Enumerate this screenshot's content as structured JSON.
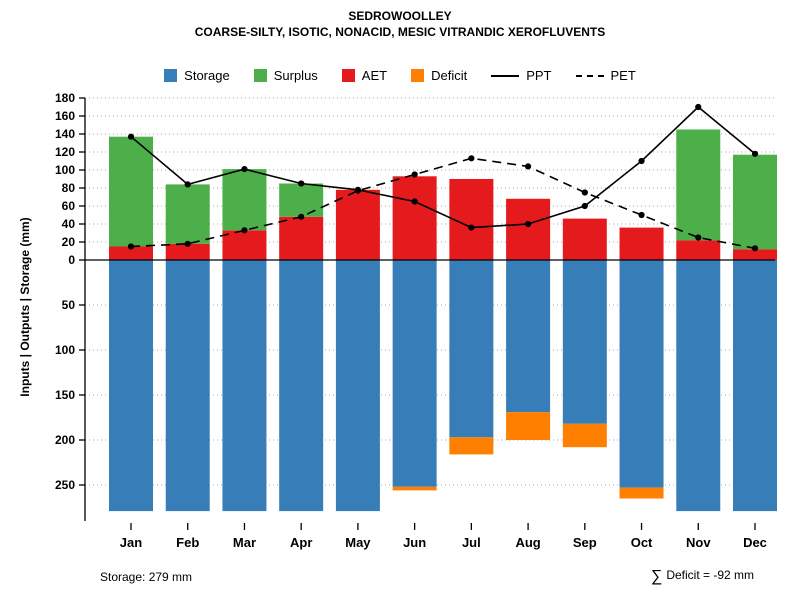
{
  "title": "SEDROWOOLLEY",
  "subtitle": "COARSE-SILTY, ISOTIC, NONACID, MESIC VITRANDIC XEROFLUVENTS",
  "footer": {
    "storage_note": "Storage: 279 mm",
    "deficit_sigma": "∑",
    "deficit_note": "Deficit = -92 mm"
  },
  "legend": {
    "items": [
      {
        "label": "Storage",
        "swatch": "square",
        "color": "#377EB8"
      },
      {
        "label": "Surplus",
        "swatch": "square",
        "color": "#4DAF4A"
      },
      {
        "label": "AET",
        "swatch": "square",
        "color": "#E41A1C"
      },
      {
        "label": "Deficit",
        "swatch": "square",
        "color": "#FF7F00"
      },
      {
        "label": "PPT",
        "swatch": "line-solid",
        "color": "#000000"
      },
      {
        "label": "PET",
        "swatch": "line-dashed",
        "color": "#000000"
      }
    ]
  },
  "chart_data": {
    "type": "bar",
    "title": "SEDROWOOLLEY",
    "subtitle": "COARSE-SILTY, ISOTIC, NONACID, MESIC VITRANDIC XEROFLUVENTS",
    "ylabel": "Inputs | Outputs | Storage  (mm)",
    "categories": [
      "Jan",
      "Feb",
      "Mar",
      "Apr",
      "May",
      "Jun",
      "Jul",
      "Aug",
      "Sep",
      "Oct",
      "Nov",
      "Dec"
    ],
    "axis_up_ticks": [
      0,
      20,
      40,
      60,
      80,
      100,
      120,
      140,
      160,
      180
    ],
    "axis_down_ticks": [
      50,
      100,
      150,
      200,
      250
    ],
    "ylim_up": [
      0,
      180
    ],
    "ylim_down": [
      0,
      290
    ],
    "grid": true,
    "legend_position": "top",
    "series": [
      {
        "name": "Storage",
        "kind": "bar",
        "direction": "down",
        "color": "#377EB8",
        "values": [
          279,
          279,
          279,
          279,
          279,
          252,
          197,
          169,
          182,
          253,
          279,
          279
        ]
      },
      {
        "name": "Surplus",
        "kind": "bar",
        "direction": "up",
        "stack_on": "AET",
        "color": "#4DAF4A",
        "values": [
          122,
          66,
          68,
          37,
          0,
          0,
          0,
          0,
          0,
          0,
          123,
          105
        ]
      },
      {
        "name": "AET",
        "kind": "bar",
        "direction": "up",
        "color": "#E41A1C",
        "values": [
          15,
          18,
          33,
          48,
          78,
          93,
          90,
          68,
          46,
          36,
          22,
          12
        ]
      },
      {
        "name": "Deficit",
        "kind": "bar",
        "direction": "down",
        "stack_on": "Storage",
        "color": "#FF7F00",
        "values": [
          0,
          0,
          0,
          0,
          0,
          4,
          19,
          31,
          26,
          12,
          0,
          0
        ]
      },
      {
        "name": "PPT",
        "kind": "line",
        "style": "solid",
        "color": "#000000",
        "values": [
          137,
          84,
          101,
          85,
          78,
          65,
          36,
          40,
          60,
          110,
          170,
          118
        ]
      },
      {
        "name": "PET",
        "kind": "line",
        "style": "dashed",
        "color": "#000000",
        "values": [
          15,
          18,
          33,
          48,
          77,
          95,
          113,
          104,
          75,
          50,
          25,
          13
        ]
      }
    ],
    "annotations": {
      "storage_total": "Storage: 279 mm",
      "deficit_sum": "∑ Deficit = -92 mm"
    }
  }
}
